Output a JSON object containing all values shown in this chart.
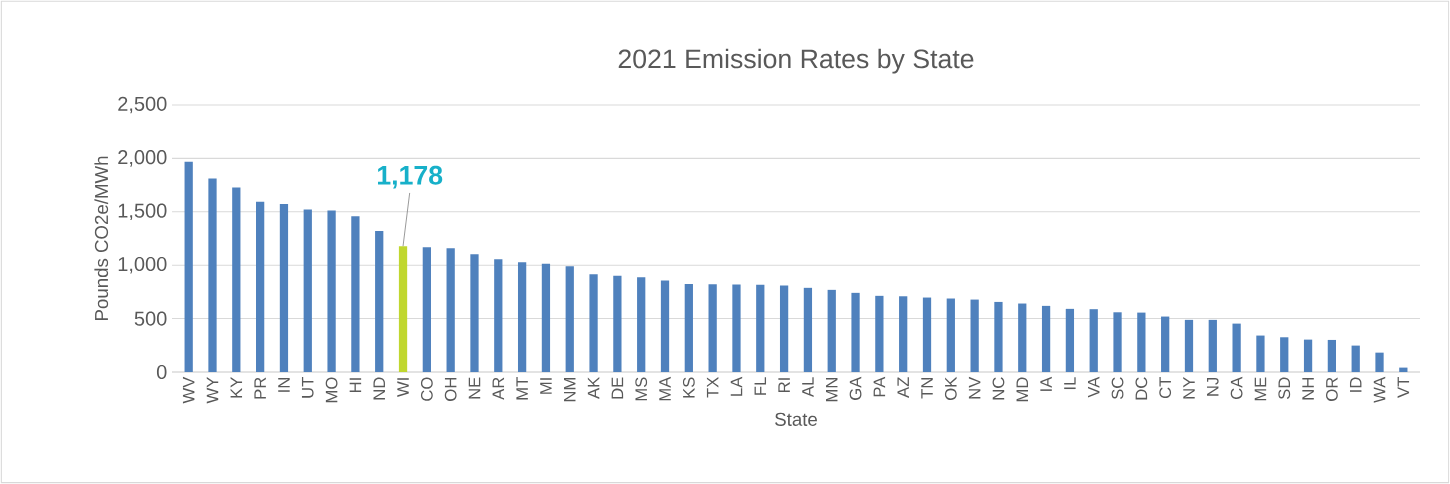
{
  "chart_data": {
    "type": "bar",
    "title": "2021 Emission Rates by State",
    "xlabel": "State",
    "ylabel": "Pounds CO2e/MWh",
    "categories": [
      "WV",
      "WY",
      "KY",
      "PR",
      "IN",
      "UT",
      "MO",
      "HI",
      "ND",
      "WI",
      "CO",
      "OH",
      "NE",
      "AR",
      "MT",
      "MI",
      "NM",
      "AK",
      "DE",
      "MS",
      "MA",
      "KS",
      "TX",
      "LA",
      "FL",
      "RI",
      "AL",
      "MN",
      "GA",
      "PA",
      "AZ",
      "TN",
      "OK",
      "NV",
      "NC",
      "MD",
      "IA",
      "IL",
      "VA",
      "SC",
      "DC",
      "CT",
      "NY",
      "NJ",
      "CA",
      "ME",
      "SD",
      "NH",
      "OR",
      "ID",
      "WA",
      "VT"
    ],
    "values": [
      1969,
      1812,
      1728,
      1594,
      1572,
      1522,
      1512,
      1459,
      1319,
      1178,
      1169,
      1159,
      1103,
      1056,
      1028,
      1013,
      991,
      916,
      900,
      888,
      856,
      825,
      822,
      819,
      816,
      809,
      788,
      769,
      741,
      713,
      709,
      697,
      688,
      678,
      656,
      641,
      619,
      591,
      588,
      559,
      556,
      519,
      488,
      488,
      453,
      341,
      325,
      303,
      300,
      247,
      181,
      41
    ],
    "colors": [
      "#4f81bd",
      "#4f81bd",
      "#4f81bd",
      "#4f81bd",
      "#4f81bd",
      "#4f81bd",
      "#4f81bd",
      "#4f81bd",
      "#4f81bd",
      "#c0d72f",
      "#4f81bd",
      "#4f81bd",
      "#4f81bd",
      "#4f81bd",
      "#4f81bd",
      "#4f81bd",
      "#4f81bd",
      "#4f81bd",
      "#4f81bd",
      "#4f81bd",
      "#4f81bd",
      "#4f81bd",
      "#4f81bd",
      "#4f81bd",
      "#4f81bd",
      "#4f81bd",
      "#4f81bd",
      "#4f81bd",
      "#4f81bd",
      "#4f81bd",
      "#4f81bd",
      "#4f81bd",
      "#4f81bd",
      "#4f81bd",
      "#4f81bd",
      "#4f81bd",
      "#4f81bd",
      "#4f81bd",
      "#4f81bd",
      "#4f81bd",
      "#4f81bd",
      "#4f81bd",
      "#4f81bd",
      "#4f81bd",
      "#4f81bd",
      "#4f81bd",
      "#4f81bd",
      "#4f81bd",
      "#4f81bd",
      "#4f81bd",
      "#4f81bd",
      "#4f81bd"
    ],
    "ylim": [
      0,
      2500
    ],
    "yticks": [
      0,
      {
        "value": 500,
        "label": "500"
      },
      {
        "value": 1000,
        "label": "1,000"
      },
      {
        "value": 1500,
        "label": "1,500"
      },
      {
        "value": 2000,
        "label": "2,000"
      },
      {
        "value": 2500,
        "label": "2,500"
      }
    ],
    "grid": "y",
    "annotations": [
      {
        "text": "1,178",
        "x": "WI",
        "y": 1178
      }
    ]
  }
}
